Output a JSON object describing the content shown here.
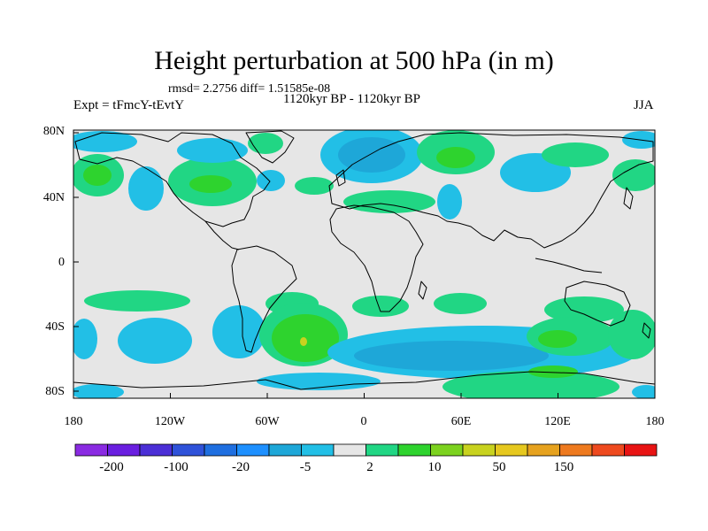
{
  "title": "Height perturbation at 500 hPa (in m)",
  "stats": "rmsd= 2.2756 diff= 1.51585e-08",
  "experiment": "Expt = tFmcY-tEvtY",
  "period": "1120kyr BP - 1120kyr BP",
  "season": "JJA",
  "lat_labels": [
    "80N",
    "40N",
    "0",
    "40S",
    "80S"
  ],
  "lon_labels": [
    "180",
    "120W",
    "60W",
    "0",
    "60E",
    "120E",
    "180"
  ],
  "colorbar": {
    "colors": [
      "#8a2be2",
      "#6a1fe0",
      "#4b2fd6",
      "#2f52d9",
      "#1f6fe0",
      "#1e90ff",
      "#1ea7d8",
      "#22bfe6",
      "#e6e6e6",
      "#21d684",
      "#2ed32e",
      "#7cd21f",
      "#c8d21f",
      "#e6c81f",
      "#e6a21f",
      "#ee7a1f",
      "#ee4a1f",
      "#e81414"
    ],
    "labels": [
      "-200",
      "-100",
      "-20",
      "-5",
      "2",
      "10",
      "50",
      "150"
    ]
  },
  "colors": {
    "background": "#e6e6e6",
    "negative_light": "#22bfe6",
    "negative_mid": "#1ea7d8",
    "negative_strong": "#1e90ff",
    "positive_light": "#21d684",
    "positive_mid": "#2ed32e",
    "positive_strong": "#7cd21f",
    "positive_peak": "#c8d21f"
  }
}
